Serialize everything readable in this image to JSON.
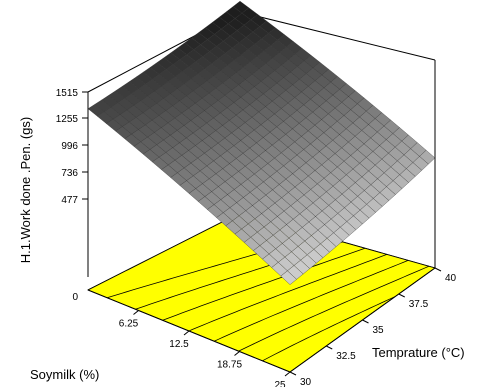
{
  "chart_data": {
    "type": "surface",
    "title": "",
    "x_axis": {
      "label": "Soymilk (%)",
      "ticks": [
        "0",
        "6.25",
        "12.5",
        "18.75",
        "25"
      ],
      "range": [
        0,
        25
      ]
    },
    "y_axis": {
      "label": "Temprature (°C)",
      "ticks": [
        "30",
        "32.5",
        "35",
        "37.5",
        "40"
      ],
      "range": [
        30,
        40
      ]
    },
    "z_axis": {
      "label": "H.1.Work done .Pen. (gs)",
      "ticks": [
        "477",
        "736",
        "996",
        "1255",
        "1515"
      ],
      "range": [
        477,
        1515
      ]
    },
    "surface_corners": [
      {
        "soymilk": 0,
        "temperature": 30,
        "value": 1515
      },
      {
        "soymilk": 0,
        "temperature": 40,
        "value": 1680
      },
      {
        "soymilk": 25,
        "temperature": 30,
        "value": 730
      },
      {
        "soymilk": 25,
        "temperature": 40,
        "value": 830
      }
    ],
    "contour_floor_color": "#ffff00",
    "grid": false
  }
}
